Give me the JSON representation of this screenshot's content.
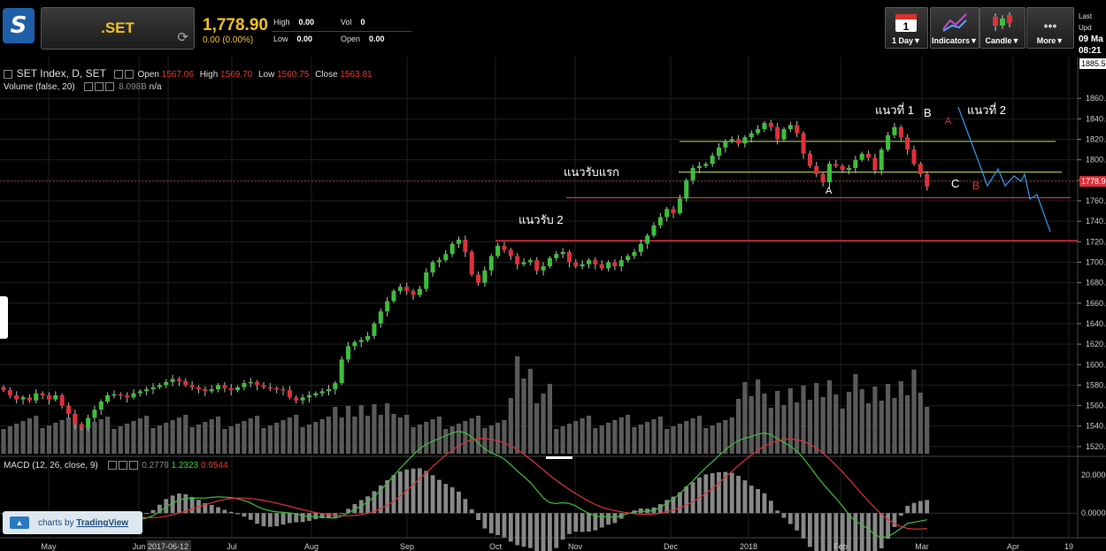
{
  "header": {
    "symbol": ".SET",
    "price": "1,778.90",
    "change": "0.00 (0.00%)",
    "high_label": "High",
    "high_value": "0.00",
    "low_label": "Low",
    "low_value": "0.00",
    "vol_label": "Vol",
    "vol_value": "0",
    "open_label": "Open",
    "open_value": "0.00",
    "last_update_label": "Last Upd",
    "last_update_date": "09 Ma",
    "last_update_time": "08:21"
  },
  "toolbar": {
    "calendar_day": "1",
    "interval_label": "1 Day▼",
    "indicators_label": "Indicators▼",
    "candle_label": "Candle▼",
    "more_dots": "•••",
    "more_label": "More▼"
  },
  "legend": {
    "series": "SET Index, D, SET",
    "open_label": "Open",
    "open": "1567.06",
    "high_label": "High",
    "high": "1569.70",
    "low_label": "Low",
    "low": "1560.75",
    "close_label": "Close",
    "close": "1563.81",
    "volume": "Volume (false, 20)",
    "volume_value": "8.098B",
    "volume_unit": "n/a",
    "macd": "MACD (12, 26, close, 9)",
    "macd_hist": "0.2779",
    "macd_line": "1.2323",
    "macd_signal": "0.9544"
  },
  "badge": {
    "prefix": "charts by",
    "brand": "TradingView"
  },
  "colors": {
    "up": "#3cbf3c",
    "down": "#e0303a",
    "volume": "#5a5a5a",
    "support": "#e0303a",
    "resistance": "#c8e060",
    "path": "#2f8fe0",
    "macd": "#3cbf3c",
    "signal": "#e0303a",
    "grid": "#1f1f1f"
  },
  "chart_data": {
    "type": "candlestick",
    "y_ticks": [
      1520,
      1540,
      1560,
      1580,
      1600,
      1620,
      1640,
      1660,
      1680,
      1700,
      1720,
      1740,
      1760,
      1780,
      1800,
      1820,
      1840,
      1860
    ],
    "y_top_label": "1885.5",
    "price_tag": "1778.9",
    "ylim": [
      1513,
      1893
    ],
    "x_labels": [
      "May",
      "Jun",
      "2017-06-12",
      "Jul",
      "Aug",
      "Sep",
      "Oct",
      "Nov",
      "Dec",
      "2018",
      "Feb",
      "Mar",
      "Apr",
      "19"
    ],
    "macd_ticks": [
      "20.0000",
      "0.0000"
    ],
    "macd_ylim": [
      -12,
      28
    ],
    "close_path": [
      1575,
      1570,
      1566,
      1568,
      1565,
      1572,
      1570,
      1566,
      1570,
      1560,
      1552,
      1542,
      1538,
      1548,
      1556,
      1564,
      1570,
      1571,
      1570,
      1568,
      1572,
      1574,
      1576,
      1578,
      1580,
      1583,
      1586,
      1584,
      1580,
      1578,
      1576,
      1574,
      1576,
      1580,
      1577,
      1575,
      1578,
      1582,
      1583,
      1580,
      1578,
      1577,
      1576,
      1575,
      1568,
      1565,
      1568,
      1570,
      1572,
      1574,
      1576,
      1582,
      1605,
      1618,
      1622,
      1624,
      1628,
      1640,
      1652,
      1662,
      1672,
      1676,
      1672,
      1668,
      1674,
      1690,
      1700,
      1702,
      1708,
      1718,
      1722,
      1710,
      1688,
      1680,
      1692,
      1706,
      1716,
      1712,
      1706,
      1698,
      1700,
      1702,
      1692,
      1696,
      1704,
      1708,
      1710,
      1700,
      1696,
      1698,
      1702,
      1698,
      1694,
      1700,
      1696,
      1702,
      1706,
      1710,
      1718,
      1726,
      1736,
      1744,
      1752,
      1748,
      1762,
      1780,
      1792,
      1794,
      1796,
      1804,
      1812,
      1818,
      1820,
      1816,
      1822,
      1826,
      1830,
      1836,
      1832,
      1820,
      1830,
      1834,
      1826,
      1806,
      1794,
      1786,
      1778,
      1796,
      1794,
      1790,
      1792,
      1800,
      1806,
      1802,
      1790,
      1810,
      1824,
      1832,
      1822,
      1810,
      1796,
      1786,
      1774
    ]
  },
  "annotations": {
    "support1": "แนวรับแรก",
    "support2": "แนวรับ 2",
    "resistance1": "แนวที่ 1",
    "resistance2": "แนวที่ 2",
    "wave_a1": "A",
    "wave_b1": "B",
    "wave_c1": "C",
    "wave_a2": "A",
    "wave_b2": "B"
  }
}
